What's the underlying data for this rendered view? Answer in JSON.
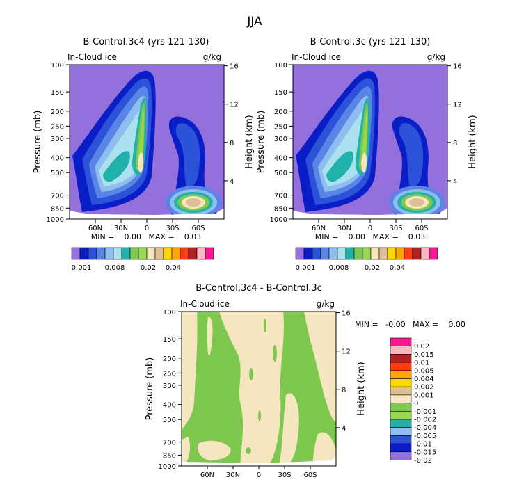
{
  "page_title": "JJA",
  "chart_data": [
    {
      "type": "contour",
      "title": "B-Control.3c4 (yrs 121-130)",
      "field_label": "In-Cloud ice",
      "units": "g/kg",
      "ylabel": "Pressure (mb)",
      "ylabel_right": "Height (km)",
      "pressure_ticks": [
        100,
        150,
        200,
        250,
        300,
        400,
        500,
        700,
        850,
        1000
      ],
      "height_ticks": [
        16,
        12,
        8,
        4
      ],
      "lat_ticks": [
        "60N",
        "30N",
        "0",
        "30S",
        "60S"
      ],
      "stats": "MIN =    0.00   MAX =    0.03",
      "colorbar_labels": [
        "0.001",
        "0.008",
        "0.02",
        "0.04"
      ],
      "colorbar_colors": [
        "#9370db",
        "#0a1ec8",
        "#2b52d8",
        "#5a84e6",
        "#8fbdf0",
        "#abe0ee",
        "#20b2aa",
        "#7ec850",
        "#98d850",
        "#f5e6c0",
        "#dfbe96",
        "#ffd700",
        "#ffa500",
        "#ff3c14",
        "#b22222",
        "#ffb6c1",
        "#ff1493"
      ]
    },
    {
      "type": "contour",
      "title": "B-Control.3c (yrs 121-130)",
      "field_label": "In-Cloud ice",
      "units": "g/kg",
      "ylabel": "Pressure (mb)",
      "ylabel_right": "Height (km)",
      "pressure_ticks": [
        100,
        150,
        200,
        250,
        300,
        400,
        500,
        700,
        850,
        1000
      ],
      "height_ticks": [
        16,
        12,
        8,
        4
      ],
      "lat_ticks": [
        "60N",
        "30N",
        "0",
        "30S",
        "60S"
      ],
      "stats": "MIN =    0.00   MAX =    0.03",
      "colorbar_labels": [
        "0.001",
        "0.008",
        "0.02",
        "0.04"
      ]
    },
    {
      "type": "contour",
      "title": "B-Control.3c4 - B-Control.3c",
      "field_label": "In-Cloud ice",
      "units": "g/kg",
      "ylabel": "Pressure (mb)",
      "ylabel_right": "Height (km)",
      "pressure_ticks": [
        100,
        150,
        200,
        250,
        300,
        400,
        500,
        700,
        850,
        1000
      ],
      "height_ticks": [
        16,
        12,
        8,
        4
      ],
      "lat_ticks": [
        "60N",
        "30N",
        "0",
        "30S",
        "60S"
      ],
      "stats": "MIN =   -0.00   MAX =    0.00",
      "legend_labels": [
        "0.02",
        "0.015",
        "0.01",
        "0.005",
        "0.004",
        "0.002",
        "0.001",
        "0",
        "-0.001",
        "-0.002",
        "-0.004",
        "-0.005",
        "-0.01",
        "-0.015",
        "-0.02"
      ],
      "legend_colors": [
        "#ff1493",
        "#ffb6c1",
        "#b22222",
        "#ff3c14",
        "#ffa500",
        "#ffd700",
        "#dfbe96",
        "#f5e6c0",
        "#7ec850",
        "#98d850",
        "#20b2aa",
        "#8fbdf0",
        "#2b52d8",
        "#0a1ec8",
        "#9370db"
      ]
    }
  ]
}
